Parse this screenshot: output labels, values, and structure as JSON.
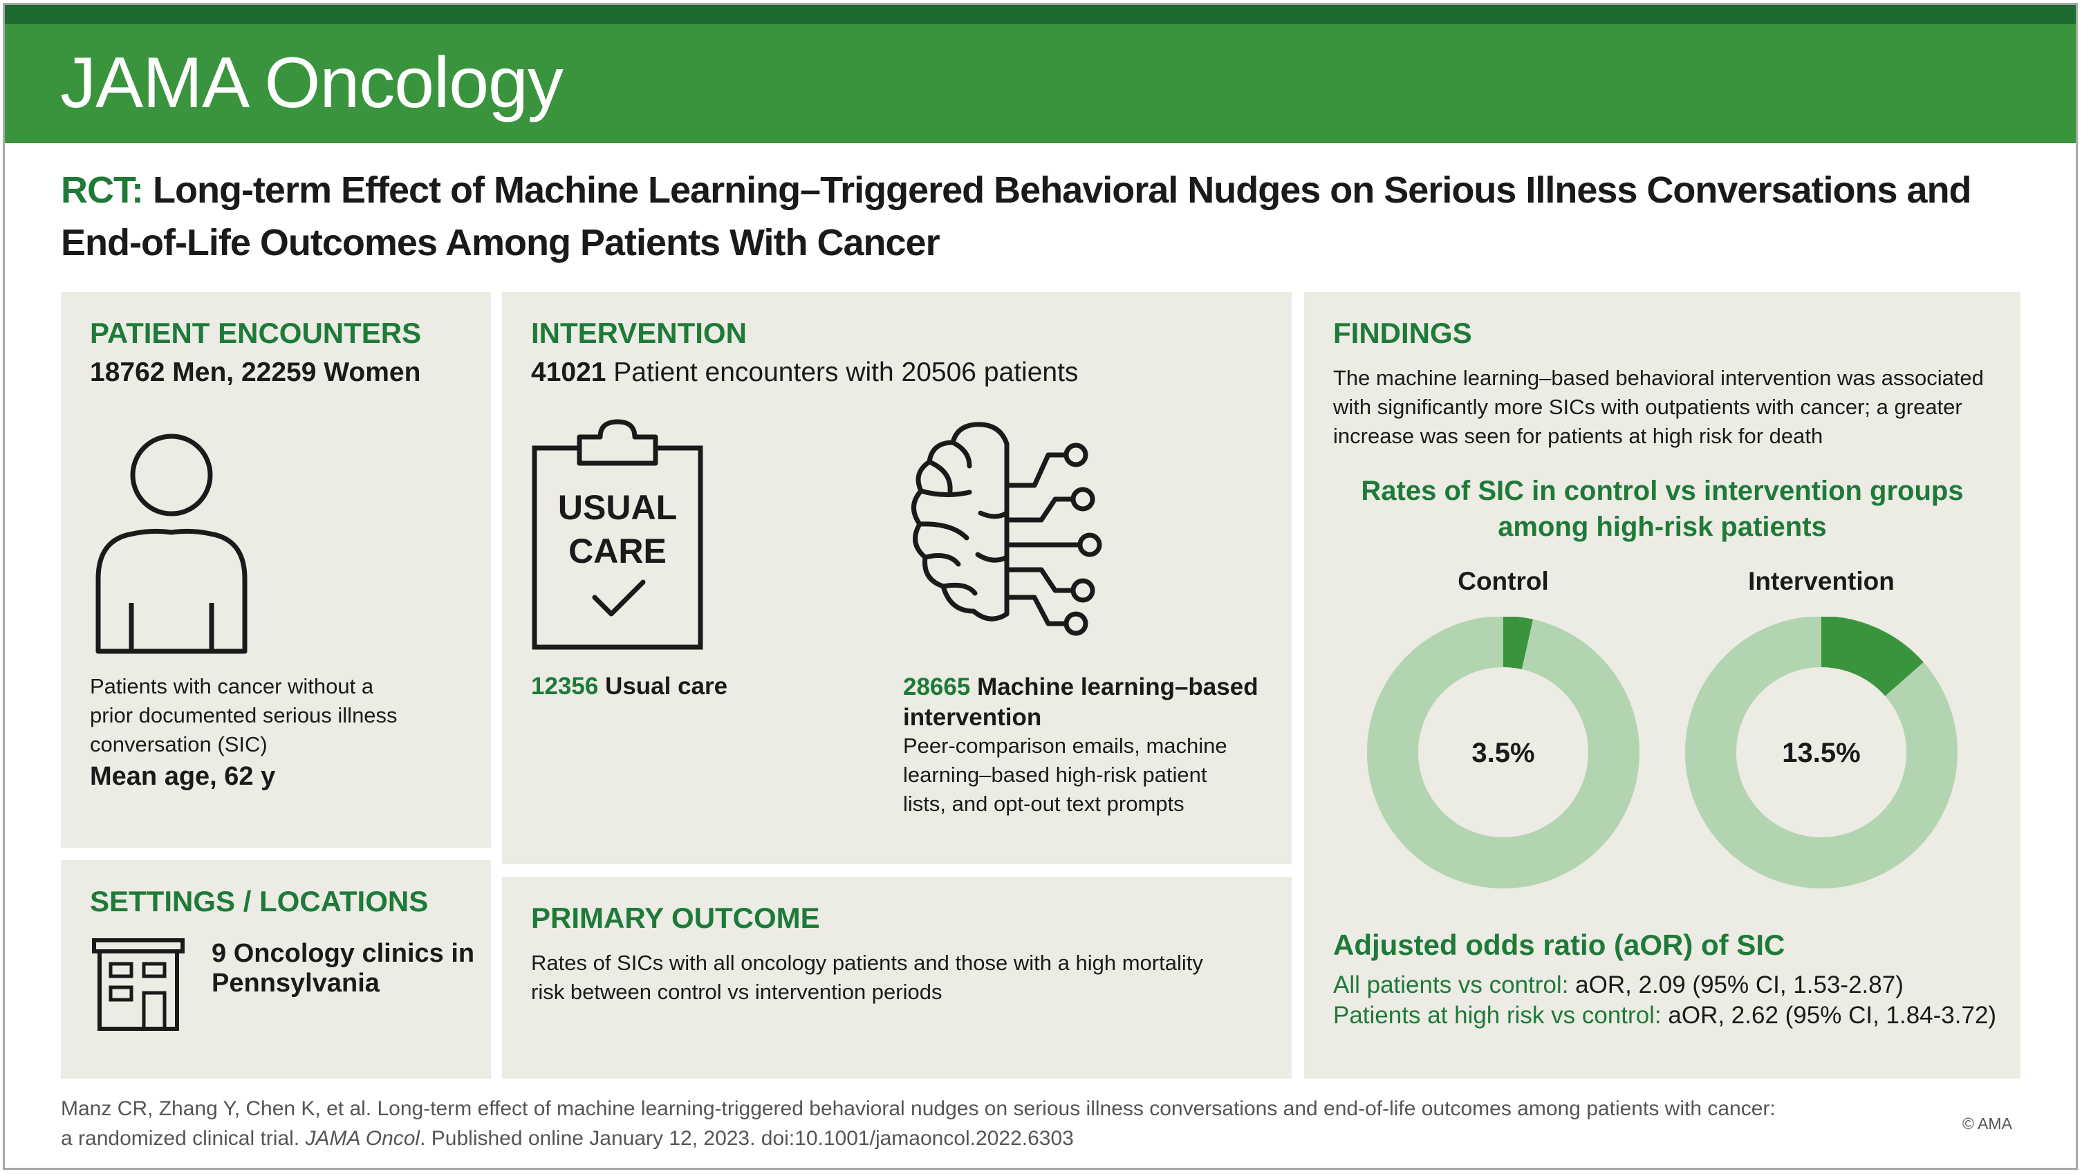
{
  "header": {
    "journal": "JAMA Oncology"
  },
  "title": {
    "prefix": "RCT:",
    "text": "Long-term Effect of Machine Learning–Triggered Behavioral Nudges on Serious Illness Conversations and End-of-Life Outcomes Among Patients With Cancer"
  },
  "patient_encounters": {
    "heading": "PATIENT ENCOUNTERS",
    "men_count": "18762",
    "men_label": "Men,",
    "women_count": "22259",
    "women_label": "Women",
    "icon": "person-icon",
    "description": "Patients with cancer without a prior documented serious illness conversation (SIC)",
    "mean_age": "Mean age, 62 y"
  },
  "intervention": {
    "heading": "INTERVENTION",
    "total_count": "41021",
    "total_label": "Patient encounters with 20506 patients",
    "usual_care_icon": "clipboard-check-icon",
    "usual_care_icon_text_1": "USUAL",
    "usual_care_icon_text_2": "CARE",
    "usual_care_count": "12356",
    "usual_care_label": "Usual care",
    "ml_icon": "brain-circuit-icon",
    "ml_count": "28665",
    "ml_label": "Machine learning–based intervention",
    "ml_description": "Peer-comparison emails, machine learning–based high-risk patient lists, and opt-out text prompts"
  },
  "settings": {
    "heading": "SETTINGS / LOCATIONS",
    "icon": "building-icon",
    "clinics_count": "9",
    "clinics_label": "Oncology clinics in Pennsylvania"
  },
  "primary_outcome": {
    "heading": "PRIMARY OUTCOME",
    "text": "Rates of SICs with all oncology patients and those with a high mortality risk between control vs intervention periods"
  },
  "findings": {
    "heading": "FINDINGS",
    "text": "The machine learning–based behavioral intervention was associated with significantly more SICs with outpatients with cancer; a greater increase was seen for patients at high risk for death",
    "aor_heading": "Adjusted odds ratio (aOR) of SIC",
    "aor_all_label": "All patients vs control:",
    "aor_all_value": "aOR, 2.09 (95% CI, 1.53-2.87)",
    "aor_high_label": "Patients at high risk vs control:",
    "aor_high_value": "aOR, 2.62 (95% CI, 1.84-3.72)"
  },
  "chart_data": {
    "type": "pie",
    "title": "Rates of SIC in control vs intervention groups among high-risk patients",
    "series": [
      {
        "name": "Control",
        "value": 3.5,
        "label": "3.5%"
      },
      {
        "name": "Intervention",
        "value": 13.5,
        "label": "13.5%"
      }
    ],
    "colors": {
      "filled": "#3a943e",
      "remainder": "#b3d4b0"
    }
  },
  "footer": {
    "citation_1": "Manz CR, Zhang Y, Chen K, et al. Long-term effect of machine learning-triggered behavioral nudges on serious illness conversations and end-of-life outcomes among patients with cancer: a randomized clinical trial.",
    "citation_journal": "JAMA Oncol",
    "citation_2": ". Published online January 12, 2023. doi:10.1001/jamaoncol.2022.6303",
    "copyright": "© AMA"
  },
  "colors": {
    "brand_green": "#3a943e",
    "dark_green": "#1d6a30",
    "text_green": "#1e7a38",
    "panel_bg": "#ecebe4"
  }
}
